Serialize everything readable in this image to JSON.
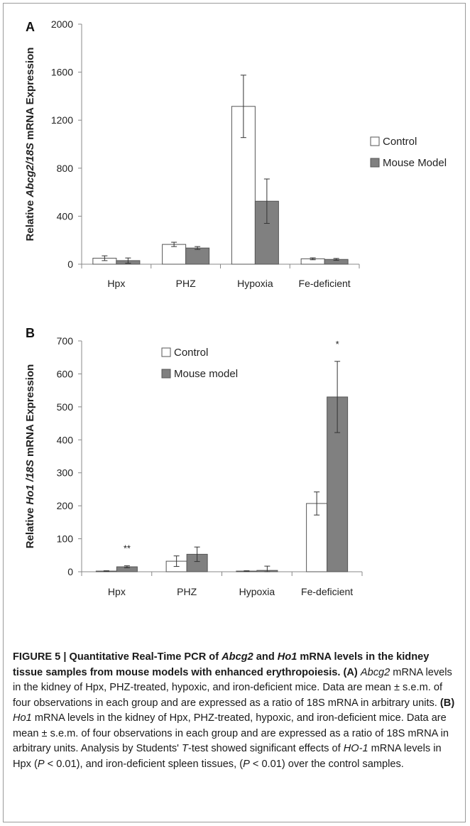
{
  "chart_data": [
    {
      "panel": "A",
      "type": "bar",
      "ylabel_parts": [
        "Relative ",
        "Abcg2/18S",
        " mRNA Expression"
      ],
      "categories": [
        "Hpx",
        "PHZ",
        "Hypoxia",
        "Fe-deficient"
      ],
      "ylim": [
        0,
        2000
      ],
      "yticks": [
        0,
        400,
        800,
        1200,
        1600,
        2000
      ],
      "legend_position": "right",
      "series": [
        {
          "name": "Control",
          "color": "#ffffff",
          "values": [
            50,
            165,
            1315,
            45
          ],
          "errors": [
            20,
            18,
            260,
            8
          ]
        },
        {
          "name": "Mouse Model",
          "color": "#808080",
          "values": [
            30,
            135,
            525,
            40
          ],
          "errors": [
            22,
            12,
            185,
            8
          ]
        }
      ],
      "annotations": []
    },
    {
      "panel": "B",
      "type": "bar",
      "ylabel_parts": [
        "Relative ",
        "Ho1 /18S",
        " mRNA Expression"
      ],
      "categories": [
        "Hpx",
        "PHZ",
        "Hypoxia",
        "Fe-deficient"
      ],
      "ylim": [
        0,
        700
      ],
      "yticks": [
        0,
        100,
        200,
        300,
        400,
        500,
        600,
        700
      ],
      "legend_position": "top-center",
      "series": [
        {
          "name": "Control",
          "color": "#ffffff",
          "values": [
            2,
            32,
            2,
            207
          ],
          "errors": [
            1,
            16,
            1,
            35
          ]
        },
        {
          "name": "Mouse model",
          "color": "#808080",
          "values": [
            15,
            53,
            4,
            530
          ],
          "errors": [
            3,
            22,
            13,
            108
          ]
        }
      ],
      "annotations": [
        {
          "category_index": 0,
          "text": "**"
        },
        {
          "category_index": 3,
          "text": "*"
        }
      ]
    }
  ],
  "caption": {
    "title_parts": [
      "FIGURE 5 | Quantitative Real-Time PCR of ",
      "Abcg2",
      " and ",
      "Ho1",
      " mRNA levels in the kidney tissue samples from mouse models with enhanced erythropoiesis."
    ],
    "a_label": "(A)",
    "a_gene": "Abcg2",
    "a_text": " mRNA levels in the kidney of Hpx, PHZ-treated, hypoxic, and iron-deficient mice. Data are mean ± s.e.m. of four observations in each group and are expressed as a ratio of 18S mRNA in arbitrary units.",
    "b_label": "(B)",
    "b_gene": "Ho1",
    "b_text": " mRNA levels in the kidney of Hpx, PHZ-treated, hypoxic, and iron-deficient mice. Data are mean ± s.e.m. of four observations in each group and are expressed as a ratio of 18S mRNA in arbitrary units. Analysis by Students' ",
    "t_letter": "T",
    "b_text2": "-test showed significant effects of ",
    "ho_gene": "HO-1",
    "b_text3": " mRNA levels in Hpx (",
    "p_letter": "P",
    "b_text4": " < 0.01), and iron-deficient spleen tissues, (",
    "p_letter2": "P",
    "b_text5": " < 0.01) over the control samples."
  }
}
